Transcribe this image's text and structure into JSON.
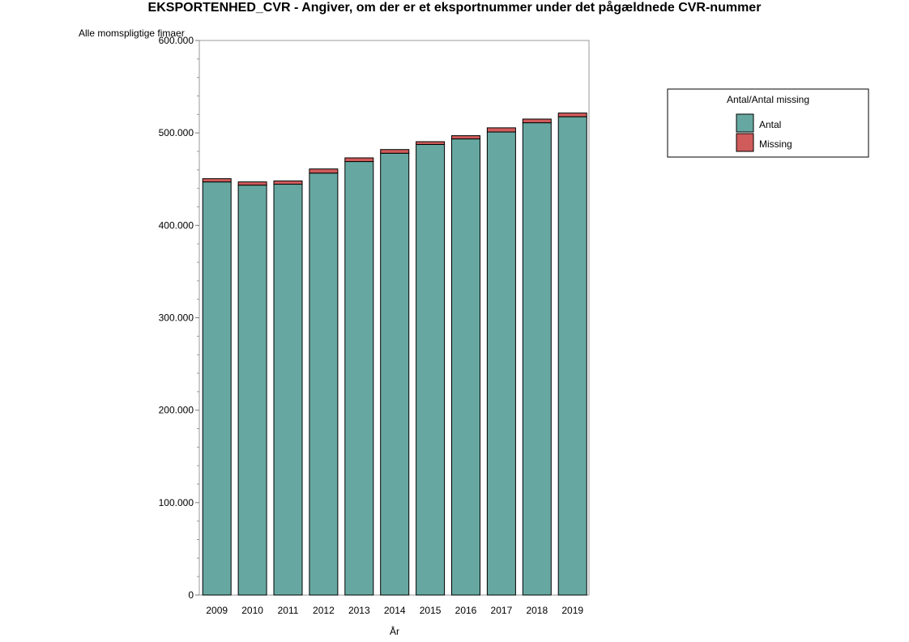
{
  "chart_data": {
    "type": "bar",
    "stacked": true,
    "title": "EKSPORTENHED_CVR - Angiver, om der er et eksportnummer under det pågældnede CVR-nummer",
    "xlabel": "År",
    "ylabel": "Alle momspligtige fimaer",
    "ylim": [
      0,
      600000
    ],
    "y_ticks": [
      0,
      100000,
      200000,
      300000,
      400000,
      500000,
      600000
    ],
    "y_tick_labels": [
      "0",
      "100.000",
      "200.000",
      "300.000",
      "400.000",
      "500.000",
      "600.000"
    ],
    "categories": [
      "2009",
      "2010",
      "2011",
      "2012",
      "2013",
      "2014",
      "2015",
      "2016",
      "2017",
      "2018",
      "2019"
    ],
    "series": [
      {
        "name": "Antal",
        "color": "#66a8a1",
        "values": [
          447000,
          443500,
          444500,
          456500,
          469000,
          478000,
          487500,
          493500,
          501000,
          511000,
          517500
        ]
      },
      {
        "name": "Missing",
        "color": "#d05b5b",
        "values": [
          3500,
          3500,
          3500,
          4500,
          4000,
          4000,
          3000,
          3500,
          4500,
          4000,
          4000
        ]
      }
    ],
    "legend": {
      "title": "Antal/Antal missing",
      "position": "top-right"
    },
    "grid": false
  }
}
